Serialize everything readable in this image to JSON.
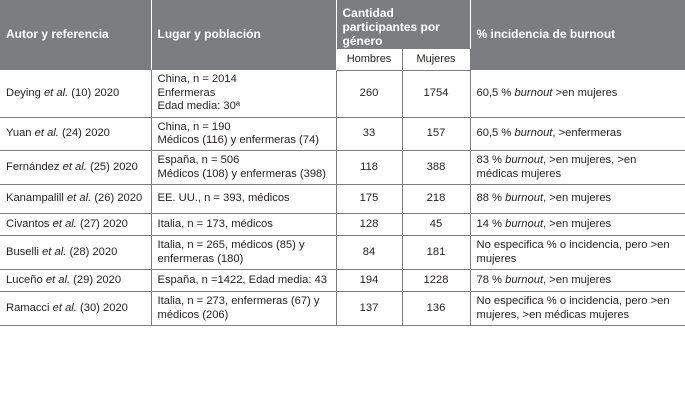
{
  "header": {
    "author": "Autor y referencia",
    "place": "Lugar y población",
    "participants": "Cantidad participantes por género",
    "men": "Hombres",
    "women": "Mujeres",
    "burnout": "% incidencia de burnout"
  },
  "rows": [
    {
      "author_pre": "Deying ",
      "author_it": "et al.",
      "author_post": " (10) 2020",
      "place_lines": [
        "China, n = 2014",
        "Enfermeras",
        "Edad media: 30ª"
      ],
      "men": "260",
      "women": "1754",
      "burnout_pre": "60,5 % ",
      "burnout_it": "burnout",
      "burnout_post": " >en mujeres"
    },
    {
      "author_pre": "Yuan ",
      "author_it": "et al.",
      "author_post": " (24) 2020",
      "place_lines": [
        "China, n = 190",
        "Médicos (116) y enfermeras (74)"
      ],
      "men": "33",
      "women": "157",
      "burnout_pre": "60,5 % ",
      "burnout_it": "burnout",
      "burnout_post": ", >enfermeras"
    },
    {
      "author_pre": "Fernández ",
      "author_it": "et al.",
      "author_post": " (25) 2020",
      "place_lines": [
        "España, n = 506",
        "Médicos (108) y enfermeras (398)"
      ],
      "men": "118",
      "women": "388",
      "burnout_pre": "83 % ",
      "burnout_it": "burnout",
      "burnout_post": ", >en mujeres, >en médicas mujeres"
    },
    {
      "author_pre": "Kanampalill ",
      "author_it": "et al.",
      "author_post": " (26) 2020",
      "place_lines": [
        "EE. UU., n = 393, médicos"
      ],
      "men": "175",
      "women": "218",
      "burnout_pre": "88 % ",
      "burnout_it": "burnout",
      "burnout_post": ", >en mujeres"
    },
    {
      "author_pre": "Civantos ",
      "author_it": "et al.",
      "author_post": " (27) 2020",
      "place_lines": [
        "Italia, n = 173, médicos"
      ],
      "men": "128",
      "women": "45",
      "burnout_pre": "14 % ",
      "burnout_it": "burnout",
      "burnout_post": ", >en mujeres"
    },
    {
      "author_pre": "Buselli ",
      "author_it": "et al.",
      "author_post": " (28) 2020",
      "place_lines": [
        "Italia, n = 265, médicos (85) y enfermeras (180)"
      ],
      "men": "84",
      "women": "181",
      "burnout_pre": "No especifica % o incidencia, pero >en mujeres",
      "burnout_it": "",
      "burnout_post": ""
    },
    {
      "author_pre": "Luceño ",
      "author_it": "et al.",
      "author_post": " (29) 2020",
      "place_lines": [
        "España, n =1422, Edad media: 43"
      ],
      "men": "194",
      "women": "1228",
      "burnout_pre": "78 % ",
      "burnout_it": "burnout",
      "burnout_post": ", >en mujeres"
    },
    {
      "author_pre": "Ramacci ",
      "author_it": "et al.",
      "author_post": " (30) 2020",
      "place_lines": [
        "Italia, n = 273, enfermeras (67) y médicos (206)"
      ],
      "men": "137",
      "women": "136",
      "burnout_pre": "No especifica % o incidencia, pero >en mujeres, >en médicas mujeres",
      "burnout_it": "",
      "burnout_post": ""
    }
  ]
}
